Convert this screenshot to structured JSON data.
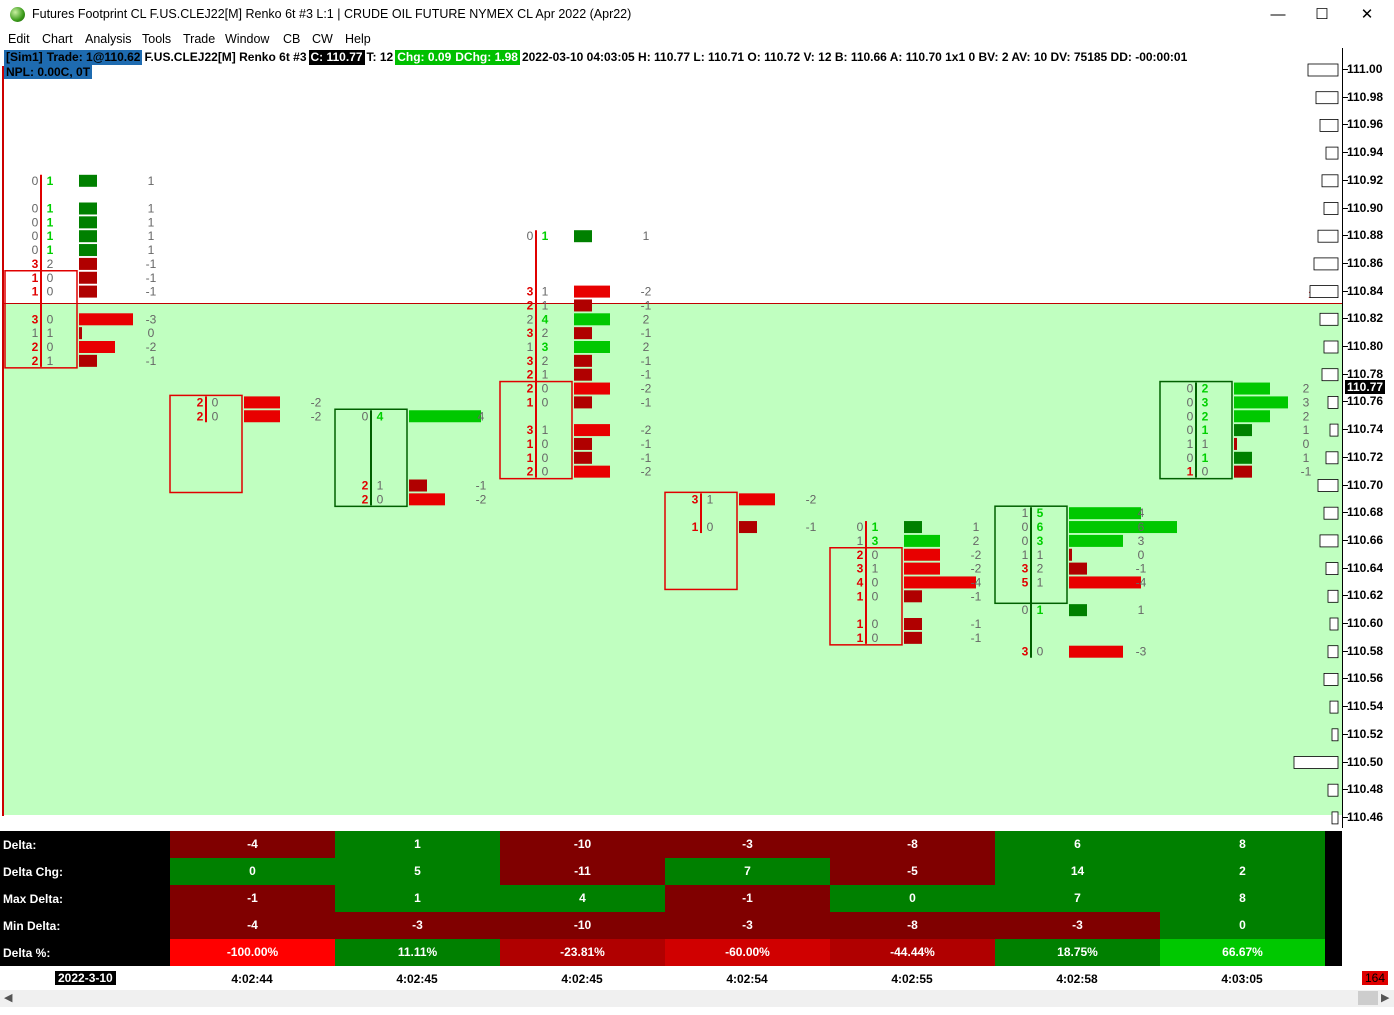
{
  "window": {
    "title": "Futures Footprint CL F.US.CLEJ22[M]  Renko 6t  #3 L:1 | CRUDE OIL FUTURE NYMEX CL Apr 2022 (Apr22)",
    "minimize": "—",
    "maximize": "☐",
    "close": "✕"
  },
  "menu": [
    "Edit",
    "Chart",
    "Analysis",
    "Tools",
    "Trade",
    "Window",
    "CB",
    "CW",
    "Help"
  ],
  "info": {
    "sim": "[Sim1]",
    "trade": "Trade: 1@110.62",
    "symbol": "F.US.CLEJ22[M]  Renko 6t  #3",
    "close": "C: 110.77",
    "ticks": "T: 12",
    "chg": "Chg: 0.09",
    "dchg": "DChg: 1.98",
    "details": "2022-03-10 04:03:05 H: 110.77 L: 110.71 O: 110.72 V: 12 B: 110.66 A: 110.70 1x1 0 BV: 2 AV: 10 DV: 75185 DD: -00:00:01",
    "npl": "NPL: 0.00C, 0T",
    "colors": {
      "sim_bg": "#1e6bb0",
      "close_bg": "#000000",
      "chg_bg": "#00c000"
    }
  },
  "price_line_label": "110.83",
  "current_price": "110.77",
  "price_axis": [
    "111.00",
    "110.98",
    "110.96",
    "110.94",
    "110.92",
    "110.90",
    "110.88",
    "110.86",
    "110.84",
    "110.82",
    "110.80",
    "110.78",
    "110.76",
    "110.74",
    "110.72",
    "110.70",
    "110.68",
    "110.66",
    "110.64",
    "110.62",
    "110.60",
    "110.58",
    "110.56",
    "110.54",
    "110.52",
    "110.50",
    "110.48",
    "110.46"
  ],
  "footprint": {
    "colors": {
      "up": "#00c800",
      "down": "#e80000",
      "down_dark": "#b00000",
      "up_dark": "#008000",
      "text_grey": "#666666"
    },
    "bars": [
      {
        "dir": "down",
        "levels": [
          {
            "p": "110.92",
            "b": "0",
            "a": "1",
            "d": "1"
          },
          {
            "p": "110.90",
            "b": "0",
            "a": "1",
            "d": "1"
          },
          {
            "p": "110.89",
            "b": "0",
            "a": "1",
            "d": "1"
          },
          {
            "p": "110.88",
            "b": "0",
            "a": "1",
            "d": "1"
          },
          {
            "p": "110.87",
            "b": "0",
            "a": "1",
            "d": "1"
          },
          {
            "p": "110.86",
            "b": "3",
            "a": "2",
            "d": "-1"
          },
          {
            "p": "110.85",
            "b": "1",
            "a": "0",
            "d": "-1"
          },
          {
            "p": "110.84",
            "b": "1",
            "a": "0",
            "d": "-1"
          },
          {
            "p": "110.82",
            "b": "3",
            "a": "0",
            "d": "-3"
          },
          {
            "p": "110.81",
            "b": "1",
            "a": "1",
            "d": "0"
          },
          {
            "p": "110.80",
            "b": "2",
            "a": "0",
            "d": "-2"
          },
          {
            "p": "110.79",
            "b": "2",
            "a": "1",
            "d": "-1"
          }
        ]
      },
      {
        "dir": "down",
        "levels": [
          {
            "p": "110.76",
            "b": "2",
            "a": "0",
            "d": "-2"
          },
          {
            "p": "110.75",
            "b": "2",
            "a": "0",
            "d": "-2"
          }
        ]
      },
      {
        "dir": "up",
        "levels": [
          {
            "p": "110.75",
            "b": "0",
            "a": "4",
            "d": "4"
          },
          {
            "p": "110.70",
            "b": "2",
            "a": "1",
            "d": "-1"
          },
          {
            "p": "110.69",
            "b": "2",
            "a": "0",
            "d": "-2"
          }
        ]
      },
      {
        "dir": "down",
        "levels": [
          {
            "p": "110.88",
            "b": "0",
            "a": "1",
            "d": "1"
          },
          {
            "p": "110.84",
            "b": "3",
            "a": "1",
            "d": "-2"
          },
          {
            "p": "110.83",
            "b": "2",
            "a": "1",
            "d": "-1"
          },
          {
            "p": "110.82",
            "b": "2",
            "a": "4",
            "d": "2"
          },
          {
            "p": "110.81",
            "b": "3",
            "a": "2",
            "d": "-1"
          },
          {
            "p": "110.80",
            "b": "1",
            "a": "3",
            "d": "2"
          },
          {
            "p": "110.79",
            "b": "3",
            "a": "2",
            "d": "-1"
          },
          {
            "p": "110.78",
            "b": "2",
            "a": "1",
            "d": "-1"
          },
          {
            "p": "110.77",
            "b": "2",
            "a": "0",
            "d": "-2"
          },
          {
            "p": "110.76",
            "b": "1",
            "a": "0",
            "d": "-1"
          },
          {
            "p": "110.74",
            "b": "3",
            "a": "1",
            "d": "-2"
          },
          {
            "p": "110.73",
            "b": "1",
            "a": "0",
            "d": "-1"
          },
          {
            "p": "110.72",
            "b": "1",
            "a": "0",
            "d": "-1"
          },
          {
            "p": "110.71",
            "b": "2",
            "a": "0",
            "d": "-2"
          }
        ]
      },
      {
        "dir": "down",
        "levels": [
          {
            "p": "110.69",
            "b": "3",
            "a": "1",
            "d": "-2"
          },
          {
            "p": "110.67",
            "b": "1",
            "a": "0",
            "d": "-1"
          }
        ]
      },
      {
        "dir": "down",
        "levels": [
          {
            "p": "110.67",
            "b": "0",
            "a": "1",
            "d": "1"
          },
          {
            "p": "110.66",
            "b": "1",
            "a": "3",
            "d": "2"
          },
          {
            "p": "110.65",
            "b": "2",
            "a": "0",
            "d": "-2"
          },
          {
            "p": "110.64",
            "b": "3",
            "a": "1",
            "d": "-2"
          },
          {
            "p": "110.63",
            "b": "4",
            "a": "0",
            "d": "-4"
          },
          {
            "p": "110.62",
            "b": "1",
            "a": "0",
            "d": "-1"
          },
          {
            "p": "110.60",
            "b": "1",
            "a": "0",
            "d": "-1"
          },
          {
            "p": "110.59",
            "b": "1",
            "a": "0",
            "d": "-1"
          }
        ]
      },
      {
        "dir": "up",
        "levels": [
          {
            "p": "110.68",
            "b": "1",
            "a": "5",
            "d": "4"
          },
          {
            "p": "110.67",
            "b": "0",
            "a": "6",
            "d": "6"
          },
          {
            "p": "110.66",
            "b": "0",
            "a": "3",
            "d": "3"
          },
          {
            "p": "110.65",
            "b": "1",
            "a": "1",
            "d": "0"
          },
          {
            "p": "110.64",
            "b": "3",
            "a": "2",
            "d": "-1"
          },
          {
            "p": "110.63",
            "b": "5",
            "a": "1",
            "d": "-4"
          },
          {
            "p": "110.61",
            "b": "0",
            "a": "1",
            "d": "1"
          },
          {
            "p": "110.58",
            "b": "3",
            "a": "0",
            "d": "-3"
          }
        ]
      },
      {
        "dir": "up",
        "levels": [
          {
            "p": "110.77",
            "b": "0",
            "a": "2",
            "d": "2"
          },
          {
            "p": "110.76",
            "b": "0",
            "a": "3",
            "d": "3"
          },
          {
            "p": "110.75",
            "b": "0",
            "a": "2",
            "d": "2"
          },
          {
            "p": "110.74",
            "b": "0",
            "a": "1",
            "d": "1"
          },
          {
            "p": "110.73",
            "b": "1",
            "a": "1",
            "d": "0"
          },
          {
            "p": "110.72",
            "b": "0",
            "a": "1",
            "d": "1"
          },
          {
            "p": "110.71",
            "b": "1",
            "a": "0",
            "d": "-1"
          }
        ]
      }
    ]
  },
  "stats": {
    "labels": [
      "Delta:",
      "Delta Chg:",
      "Max Delta:",
      "Min Delta:",
      "Delta %:"
    ],
    "rows": [
      [
        "-4",
        "1",
        "-10",
        "-3",
        "-8",
        "6",
        "8"
      ],
      [
        "0",
        "5",
        "-11",
        "7",
        "-5",
        "14",
        "2"
      ],
      [
        "-1",
        "1",
        "4",
        "-1",
        "0",
        "7",
        "8"
      ],
      [
        "-4",
        "-3",
        "-10",
        "-3",
        "-8",
        "-3",
        "0"
      ],
      [
        "-100.00%",
        "11.11%",
        "-23.81%",
        "-60.00%",
        "-44.44%",
        "18.75%",
        "66.67%"
      ]
    ],
    "colors": [
      [
        "#800000",
        "#008000",
        "#800000",
        "#800000",
        "#800000",
        "#008000",
        "#008000"
      ],
      [
        "#008000",
        "#008000",
        "#800000",
        "#008000",
        "#800000",
        "#008000",
        "#008000"
      ],
      [
        "#800000",
        "#008000",
        "#008000",
        "#800000",
        "#008000",
        "#008000",
        "#008000"
      ],
      [
        "#800000",
        "#800000",
        "#800000",
        "#800000",
        "#800000",
        "#800000",
        "#008000"
      ],
      [
        "#ff0000",
        "#008000",
        "#b00000",
        "#d00000",
        "#b00000",
        "#008000",
        "#00c800"
      ]
    ]
  },
  "time_axis": {
    "date": "2022-3-10",
    "times": [
      "4:02:44",
      "4:02:45",
      "4:02:45",
      "4:02:54",
      "4:02:55",
      "4:02:58",
      "4:03:05"
    ],
    "bar_count": "164"
  }
}
